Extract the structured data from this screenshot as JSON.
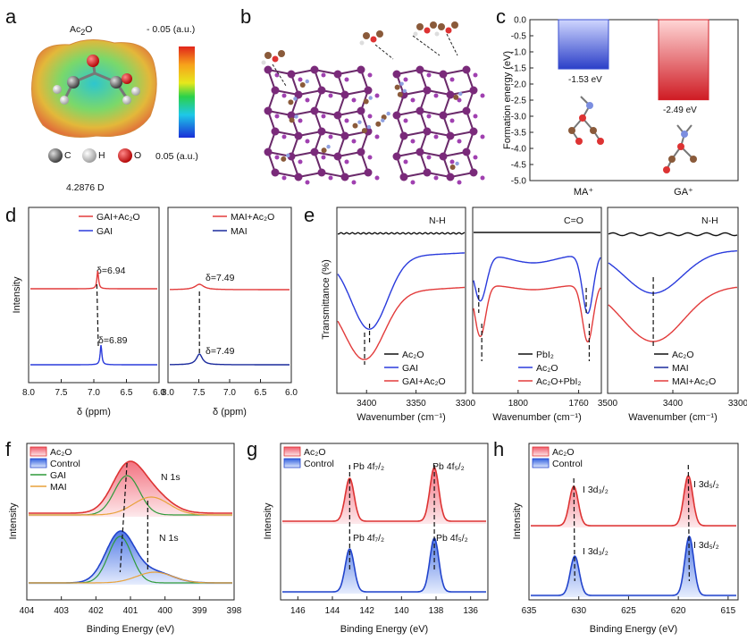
{
  "panel_labels": [
    "a",
    "b",
    "c",
    "d",
    "e",
    "f",
    "g",
    "h"
  ],
  "panel_a": {
    "molecule_html": "Ac₂O",
    "scale_top": "- 0.05 (a.u.)",
    "scale_bottom": "0.05 (a.u.)",
    "atom_legend": [
      "C",
      "H",
      "O"
    ],
    "dipole": "4.2876 D",
    "colors": {
      "C": "#555555",
      "H": "#dddddd",
      "O": "#cc1111"
    }
  },
  "chart_data": [
    {
      "id": "c",
      "type": "bar",
      "categories": [
        "MA⁺",
        "GA⁺"
      ],
      "values": [
        -1.53,
        -2.49
      ],
      "value_labels": [
        "-1.53 eV",
        "-2.49 eV"
      ],
      "ylabel": "Formation energy (eV)",
      "ylim": [
        -5.0,
        0.0
      ],
      "yticks": [
        "0.0",
        "-0.5",
        "-1.0",
        "-1.5",
        "-2.0",
        "-2.5",
        "-3.0",
        "-3.5",
        "-4.0",
        "-4.5",
        "-5.0"
      ],
      "colors": [
        "#3a4fcf",
        "#d2222a"
      ]
    },
    {
      "id": "d-left",
      "type": "line",
      "series": [
        {
          "name": "GAI+Ac₂O",
          "peak_ppm": 6.94,
          "label": "δ=6.94",
          "color": "#e23b3b"
        },
        {
          "name": "GAI",
          "peak_ppm": 6.89,
          "label": "δ=6.89",
          "color": "#2a3bdc"
        }
      ],
      "xlabel": "δ (ppm)",
      "ylabel": "Intensity",
      "xlim": [
        8.0,
        6.0
      ],
      "xticks": [
        "8.0",
        "7.5",
        "7.0",
        "6.5",
        "6.0"
      ]
    },
    {
      "id": "d-right",
      "type": "line",
      "series": [
        {
          "name": "MAI+Ac₂O",
          "peak_ppm": 7.49,
          "label": "δ=7.49",
          "color": "#e23b3b"
        },
        {
          "name": "MAI",
          "peak_ppm": 7.49,
          "label": "δ=7.49",
          "color": "#1a2a9c"
        }
      ],
      "xlabel": "δ (ppm)",
      "xlim": [
        8.0,
        6.0
      ],
      "xticks": [
        "8.0",
        "7.5",
        "7.0",
        "6.5",
        "6.0"
      ]
    },
    {
      "id": "e1",
      "type": "line",
      "title": "N-H",
      "series": [
        {
          "name": "Ac₂O",
          "color": "#111111"
        },
        {
          "name": "GAI",
          "color": "#2a3bdc"
        },
        {
          "name": "GAI+Ac₂O",
          "color": "#e23b3b"
        }
      ],
      "xticks": [
        "3400",
        "3350",
        "3300"
      ],
      "xlim": [
        3430,
        3300
      ],
      "ylabel": "Transmittance (%)",
      "xlabel": "Wavenumber (cm⁻¹)"
    },
    {
      "id": "e2",
      "type": "line",
      "title": "C=O",
      "series": [
        {
          "name": "PbI₂",
          "color": "#111111"
        },
        {
          "name": "Ac₂O",
          "color": "#2a3bdc"
        },
        {
          "name": "Ac₂O+PbI₂",
          "color": "#e23b3b"
        }
      ],
      "xticks": [
        "1800",
        "1760"
      ],
      "xlim": [
        1830,
        1745
      ],
      "xlabel": "Wavenumber (cm⁻¹)"
    },
    {
      "id": "e3",
      "type": "line",
      "title": "N-H",
      "series": [
        {
          "name": "Ac₂O",
          "color": "#111111"
        },
        {
          "name": "MAI",
          "color": "#2a3bdc"
        },
        {
          "name": "MAI+Ac₂O",
          "color": "#e23b3b"
        }
      ],
      "xticks": [
        "3500",
        "3400",
        "3300"
      ],
      "xlim": [
        3500,
        3300
      ],
      "xlabel": "Wavenumber (cm⁻¹)"
    },
    {
      "id": "f",
      "type": "area",
      "legend": [
        "Ac₂O",
        "Control",
        "GAI",
        "MAI"
      ],
      "annotations": [
        "N 1s",
        "N 1s"
      ],
      "xlabel": "Binding Energy (eV)",
      "ylabel": "Intensity",
      "xticks": [
        "404",
        "403",
        "402",
        "401",
        "400",
        "399",
        "398"
      ],
      "xlim": [
        404,
        398
      ]
    },
    {
      "id": "g",
      "type": "area",
      "legend": [
        "Ac₂O",
        "Control"
      ],
      "annotations": [
        "Pb 4f₇/₂",
        "Pb 4f₅/₂",
        "Pb 4f₇/₂",
        "Pb 4f₅/₂"
      ],
      "xlabel": "Binding Energy (eV)",
      "ylabel": "Intensity",
      "xticks": [
        "146",
        "144",
        "142",
        "140",
        "138",
        "136"
      ],
      "xlim": [
        147,
        135
      ]
    },
    {
      "id": "h",
      "type": "area",
      "legend": [
        "Ac₂O",
        "Control"
      ],
      "annotations": [
        "I 3d₃/₂",
        "I 3d₅/₂",
        "I 3d₃/₂",
        "I 3d₅/₂"
      ],
      "xlabel": "Binding Energy (eV)",
      "ylabel": "Intensity",
      "xticks": [
        "635",
        "630",
        "625",
        "620",
        "615"
      ],
      "xlim": [
        635,
        614
      ]
    }
  ]
}
